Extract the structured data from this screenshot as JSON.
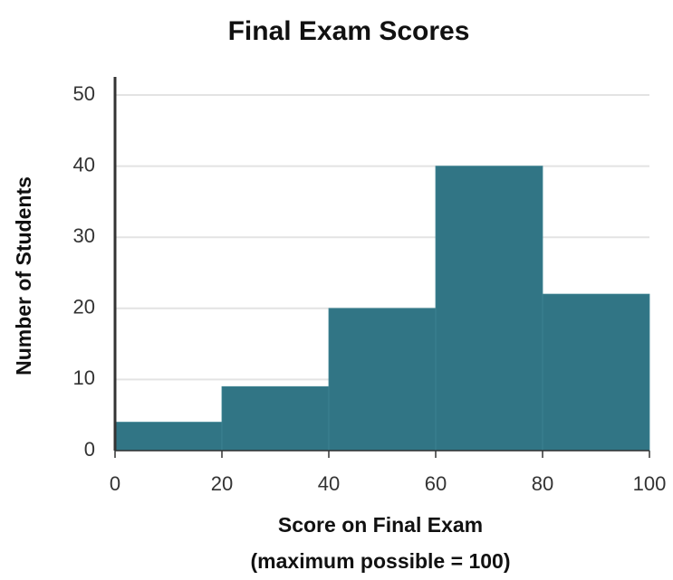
{
  "chart_data": {
    "type": "histogram",
    "title": "Final Exam Scores",
    "xlabel": [
      "Score on Final Exam",
      "(maximum possible = 100)"
    ],
    "ylabel": "Number of Students",
    "bins": [
      0,
      20,
      40,
      60,
      80,
      100
    ],
    "values": [
      4,
      9,
      20,
      40,
      22
    ],
    "color": "#317585",
    "xlim": [
      0,
      100
    ],
    "xticks": [
      0,
      20,
      40,
      60,
      80,
      100
    ],
    "ylim": [
      0,
      50
    ],
    "yticks": [
      0,
      10,
      20,
      30,
      40,
      50
    ],
    "grid": true
  }
}
